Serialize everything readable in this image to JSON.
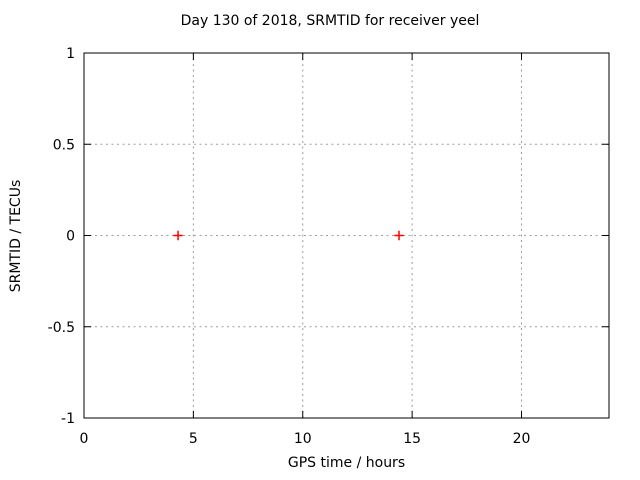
{
  "chart_data": {
    "type": "scatter",
    "title": "Day 130 of 2018, SRMTID for receiver yeel",
    "xlabel": "GPS time / hours",
    "ylabel": "SRMTID / TECUs",
    "xlim": [
      0,
      24
    ],
    "ylim": [
      -1,
      1
    ],
    "xticks": [
      0,
      5,
      10,
      15,
      20
    ],
    "xtick_labels": [
      "0",
      "5",
      "10",
      "15",
      "20"
    ],
    "yticks": [
      -1,
      -0.5,
      0,
      0.5,
      1
    ],
    "ytick_labels": [
      "-1",
      "-0.5",
      "0",
      "0.5",
      "1"
    ],
    "grid": true,
    "legend": false,
    "series": [
      {
        "marker": "plus",
        "color": "#ff0000",
        "points": [
          [
            4.3,
            0
          ],
          [
            14.4,
            0
          ]
        ]
      }
    ],
    "grid_color": "#9e9e9e",
    "axis_color": "#000000",
    "background_color": "#ffffff"
  }
}
